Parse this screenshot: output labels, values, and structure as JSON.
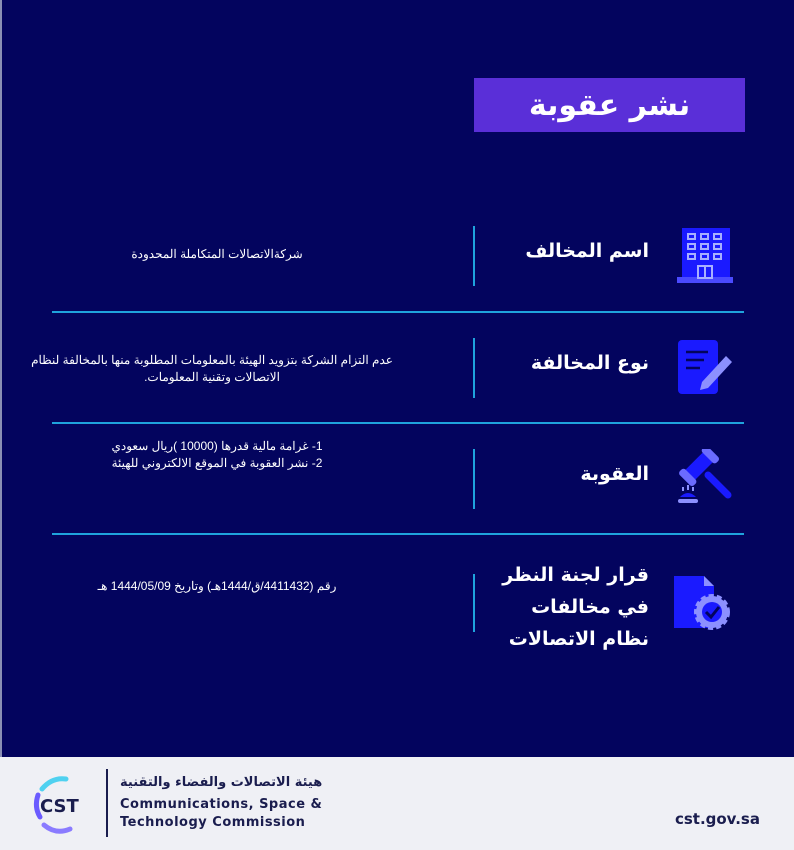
{
  "title": "نشر عقوبة",
  "rows": [
    {
      "label": "اسم المخالف",
      "value": "شركةالاتصالات المتكاملة المحدودة",
      "icon": "building-icon"
    },
    {
      "label": "نوع المخالفة",
      "value": "عدم التزام الشركة بتزويد الهيئة بالمعلومات المطلوبة منها بالمخالفة لنظام الاتصالات وتقنية المعلومات.",
      "icon": "document-edit-icon"
    },
    {
      "label": "العقوبة",
      "value_lines": [
        "1- غرامة مالية قدرها (10000 )ريال سعودي",
        "2-   نشر العقوبة في الموقع الالكتروني للهيئة"
      ],
      "icon": "gavel-icon"
    },
    {
      "label_lines": [
        "قرار لجنة النظر",
        "في مخالفات",
        "نظام الاتصالات"
      ],
      "value": "رقم (4411432/ق/1444هـ) وتاريخ 1444/05/09 هـ",
      "icon": "certified-document-icon"
    }
  ],
  "footer": {
    "logo_text": "CST",
    "org_ar": "هيئة الاتصالات والفضاء والتقنية",
    "org_en_1": "Communications, Space &",
    "org_en_2": "Technology Commission",
    "url": "cst.gov.sa"
  },
  "colors": {
    "background": "#03045e",
    "title_bar": "#5a2fd8",
    "divider": "#1fa3dd",
    "icon": "#1a1aff"
  }
}
